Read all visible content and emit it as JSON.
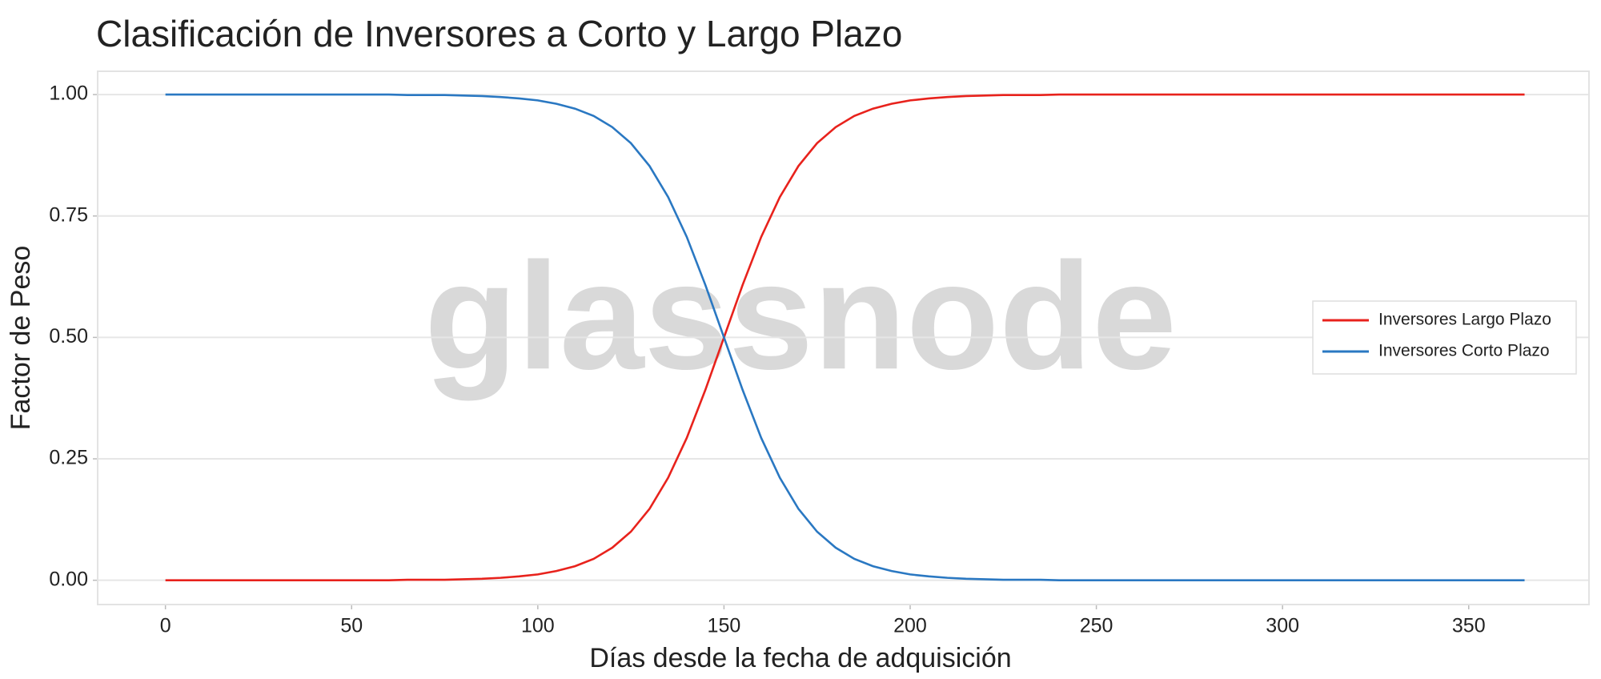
{
  "chart_data": {
    "type": "line",
    "title": "Clasificación de Inversores a Corto y Largo Plazo",
    "x_label": "Días desde la fecha de adquisición",
    "y_label": "Factor de Peso",
    "watermark": "glassnode",
    "x": [
      0,
      5,
      10,
      15,
      20,
      25,
      30,
      35,
      40,
      45,
      50,
      55,
      60,
      65,
      70,
      75,
      80,
      85,
      90,
      95,
      100,
      105,
      110,
      115,
      120,
      125,
      130,
      135,
      140,
      145,
      150,
      155,
      160,
      165,
      170,
      175,
      180,
      185,
      190,
      195,
      200,
      205,
      210,
      215,
      220,
      225,
      230,
      235,
      240,
      245,
      250,
      255,
      260,
      265,
      270,
      275,
      280,
      285,
      290,
      295,
      300,
      305,
      310,
      315,
      320,
      325,
      330,
      335,
      340,
      345,
      350,
      355,
      360,
      365
    ],
    "series": [
      {
        "name": "Inversores Largo Plazo",
        "color": "#e8221c",
        "values": [
          0,
          0,
          0,
          0,
          0,
          0,
          0,
          0,
          0,
          0,
          0,
          0,
          0,
          0.001,
          0.001,
          0.001,
          0.002,
          0.003,
          0.005,
          0.008,
          0.012,
          0.019,
          0.029,
          0.044,
          0.067,
          0.1,
          0.147,
          0.211,
          0.293,
          0.392,
          0.5,
          0.608,
          0.707,
          0.789,
          0.853,
          0.9,
          0.933,
          0.956,
          0.971,
          0.981,
          0.988,
          0.992,
          0.995,
          0.997,
          0.998,
          0.999,
          0.999,
          0.999,
          1,
          1,
          1,
          1,
          1,
          1,
          1,
          1,
          1,
          1,
          1,
          1,
          1,
          1,
          1,
          1,
          1,
          1,
          1,
          1,
          1,
          1,
          1,
          1,
          1,
          1
        ]
      },
      {
        "name": "Inversores Corto Plazo",
        "color": "#2a78c2",
        "values": [
          1,
          1,
          1,
          1,
          1,
          1,
          1,
          1,
          1,
          1,
          1,
          1,
          1,
          0.999,
          0.999,
          0.999,
          0.998,
          0.997,
          0.995,
          0.992,
          0.988,
          0.981,
          0.971,
          0.956,
          0.933,
          0.9,
          0.853,
          0.789,
          0.707,
          0.608,
          0.5,
          0.392,
          0.293,
          0.211,
          0.147,
          0.1,
          0.067,
          0.044,
          0.029,
          0.019,
          0.012,
          0.008,
          0.005,
          0.003,
          0.002,
          0.001,
          0.001,
          0.001,
          0,
          0,
          0,
          0,
          0,
          0,
          0,
          0,
          0,
          0,
          0,
          0,
          0,
          0,
          0,
          0,
          0,
          0,
          0,
          0,
          0,
          0,
          0,
          0,
          0,
          0
        ]
      }
    ],
    "xlim": [
      -18.2,
      382.3
    ],
    "ylim": [
      -0.05,
      1.048
    ],
    "xticks": [
      0,
      50,
      100,
      150,
      200,
      250,
      300,
      350
    ],
    "yticks": [
      {
        "value": 0,
        "label": "0.00"
      },
      {
        "value": 0.25,
        "label": "0.25"
      },
      {
        "value": 0.5,
        "label": "0.50"
      },
      {
        "value": 0.75,
        "label": "0.75"
      },
      {
        "value": 1,
        "label": "1.00"
      }
    ],
    "grid": true,
    "legend": "right"
  }
}
